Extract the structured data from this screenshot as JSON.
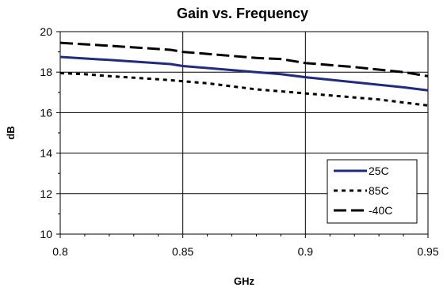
{
  "chart_data": {
    "type": "line",
    "title": "Gain vs. Frequency",
    "xlabel": "GHz",
    "ylabel": "dB",
    "xlim": [
      0.8,
      0.95
    ],
    "ylim": [
      10,
      20
    ],
    "x_ticks": [
      "0.8",
      "0.85",
      "0.9",
      "0.95"
    ],
    "y_ticks": [
      "10",
      "12",
      "14",
      "16",
      "18",
      "20"
    ],
    "grid": true,
    "legend_position": "bottom-right",
    "series": [
      {
        "name": "25C",
        "style": "solid",
        "color": "#1F2A86",
        "x": [
          0.8,
          0.82,
          0.845,
          0.85,
          0.87,
          0.88,
          0.89,
          0.9,
          0.92,
          0.94,
          0.95
        ],
        "y": [
          18.75,
          18.6,
          18.4,
          18.3,
          18.1,
          18.0,
          17.9,
          17.75,
          17.5,
          17.25,
          17.1
        ]
      },
      {
        "name": "85C",
        "style": "dotted",
        "color": "#000000",
        "x": [
          0.8,
          0.81,
          0.82,
          0.84,
          0.85,
          0.86,
          0.87,
          0.88,
          0.89,
          0.9,
          0.91,
          0.92,
          0.93,
          0.94,
          0.95
        ],
        "y": [
          17.95,
          17.9,
          17.8,
          17.65,
          17.55,
          17.45,
          17.3,
          17.15,
          17.05,
          16.95,
          16.85,
          16.75,
          16.65,
          16.5,
          16.35
        ]
      },
      {
        "name": "-40C",
        "style": "dashed",
        "color": "#000000",
        "x": [
          0.8,
          0.82,
          0.845,
          0.85,
          0.87,
          0.88,
          0.89,
          0.9,
          0.92,
          0.94,
          0.95
        ],
        "y": [
          19.45,
          19.3,
          19.1,
          19.0,
          18.8,
          18.7,
          18.65,
          18.45,
          18.25,
          18.0,
          17.8
        ]
      }
    ]
  }
}
